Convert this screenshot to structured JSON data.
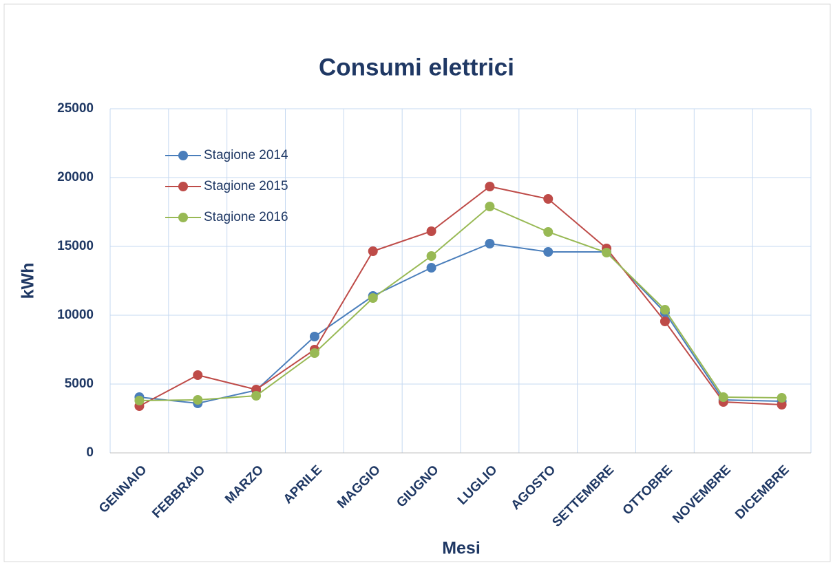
{
  "chart_data": {
    "type": "line",
    "title": "Consumi elettrici",
    "x_label": "Mesi",
    "y_label": "kWh",
    "categories": [
      "GENNAIO",
      "FEBBRAIO",
      "MARZO",
      "APRILE",
      "MAGGIO",
      "GIUGNO",
      "LUGLIO",
      "AGOSTO",
      "SETTEMBRE",
      "OTTOBRE",
      "NOVEMBRE",
      "DICEMBRE"
    ],
    "series": [
      {
        "name": "Stagione 2014",
        "color": "#4a7ebb",
        "values": [
          4050,
          3600,
          4550,
          8450,
          11400,
          13450,
          15200,
          14600,
          14600,
          10200,
          3850,
          3750
        ]
      },
      {
        "name": "Stagione 2015",
        "color": "#be4b48",
        "values": [
          3400,
          5650,
          4600,
          7500,
          14650,
          16100,
          19350,
          18450,
          14850,
          9550,
          3700,
          3500
        ]
      },
      {
        "name": "Stagione 2016",
        "color": "#98b954",
        "values": [
          3800,
          3850,
          4150,
          7250,
          11250,
          14300,
          17900,
          16050,
          14550,
          10400,
          4050,
          4000
        ]
      }
    ],
    "ylim": [
      0,
      25000
    ],
    "yticks": [
      0,
      5000,
      10000,
      15000,
      20000,
      25000
    ],
    "grid": true,
    "legend": "upper left"
  }
}
